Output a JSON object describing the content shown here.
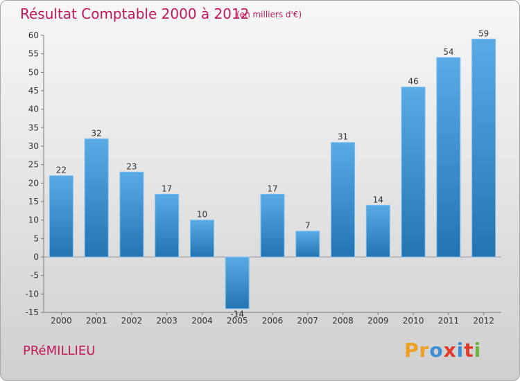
{
  "header": {
    "title": "Résultat Comptable 2000 à 2012",
    "subtitle": "(en milliers d'€)"
  },
  "footer": {
    "commune": "PRéMILLIEU",
    "logo_letters": [
      "P",
      "r",
      "o",
      "x",
      "i",
      "t",
      "i"
    ]
  },
  "colors": {
    "title": "#c2185b",
    "bar_light": "#5aaae6",
    "bar_dark": "#2474b2",
    "logo": [
      "#f0a020",
      "#f0a020",
      "#3a8fd8",
      "#e23a2a",
      "#3a8fd8",
      "#e23a2a",
      "#6db33f"
    ]
  },
  "chart_data": {
    "type": "bar",
    "categories": [
      "2000",
      "2001",
      "2002",
      "2003",
      "2004",
      "2005",
      "2006",
      "2007",
      "2008",
      "2009",
      "2010",
      "2011",
      "2012"
    ],
    "values": [
      22,
      32,
      23,
      17,
      10,
      -14,
      17,
      7,
      31,
      14,
      46,
      54,
      59
    ],
    "data_labels": [
      "22",
      "32",
      "23",
      "17",
      "10",
      "-14",
      "17",
      "7",
      "31",
      "14",
      "46",
      "54",
      "59"
    ],
    "title": "Résultat Comptable 2000 à 2012",
    "subtitle": "(en milliers d'€)",
    "xlabel": "",
    "ylabel": "",
    "ylim": [
      -15,
      60
    ],
    "yticks": [
      -15,
      -10,
      -5,
      0,
      5,
      10,
      15,
      20,
      25,
      30,
      35,
      40,
      45,
      50,
      55,
      60
    ],
    "grid": false,
    "legend": "none"
  }
}
